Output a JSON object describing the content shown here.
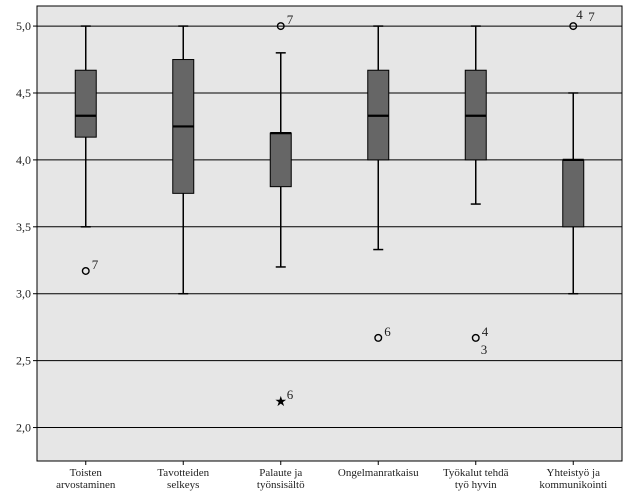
{
  "chart_data": {
    "type": "boxplot",
    "ylim": [
      1.75,
      5.15
    ],
    "y_ticks": [
      "2,0",
      "2,5",
      "3,0",
      "3,5",
      "4,0",
      "4,5",
      "5,0"
    ],
    "y_tick_values": [
      2.0,
      2.5,
      3.0,
      3.5,
      4.0,
      4.5,
      5.0
    ],
    "grid": true,
    "colors": {
      "plot_bg": "#e6e6e6",
      "box": "#666666",
      "line": "#000000"
    },
    "categories": [
      {
        "label_lines": [
          "Toisten",
          "arvostaminen"
        ],
        "whisker_low": 3.5,
        "q1": 4.17,
        "median": 4.33,
        "q3": 4.67,
        "whisker_high": 5.0,
        "outliers": [
          {
            "value": 3.17,
            "marker": "circle",
            "labels": [
              "7"
            ]
          }
        ]
      },
      {
        "label_lines": [
          "Tavotteiden",
          "selkeys"
        ],
        "whisker_low": 3.0,
        "q1": 3.75,
        "median": 4.25,
        "q3": 4.75,
        "whisker_high": 5.0,
        "outliers": []
      },
      {
        "label_lines": [
          "Palaute ja",
          "työnsisältö"
        ],
        "whisker_low": 3.2,
        "q1": 3.8,
        "median": 4.2,
        "q3": 4.2,
        "whisker_high": 4.8,
        "outliers": [
          {
            "value": 5.0,
            "marker": "circle",
            "labels": [
              "7"
            ]
          },
          {
            "value": 2.2,
            "marker": "star",
            "labels": [
              "6"
            ]
          }
        ]
      },
      {
        "label_lines": [
          "Ongelmanratkaisu"
        ],
        "whisker_low": 3.33,
        "q1": 4.0,
        "median": 4.33,
        "q3": 4.67,
        "whisker_high": 5.0,
        "outliers": [
          {
            "value": 2.67,
            "marker": "circle",
            "labels": [
              "6"
            ]
          }
        ]
      },
      {
        "label_lines": [
          "Työkalut tehdä",
          "työ hyvin"
        ],
        "whisker_low": 3.67,
        "q1": 4.0,
        "median": 4.33,
        "q3": 4.67,
        "whisker_high": 5.0,
        "outliers": [
          {
            "value": 2.67,
            "marker": "circle",
            "labels": [
              "4",
              "3"
            ]
          }
        ]
      },
      {
        "label_lines": [
          "Yhteistyö ja",
          "kommunikointi"
        ],
        "whisker_low": 3.0,
        "q1": 3.5,
        "median": 4.0,
        "q3": 4.0,
        "whisker_high": 4.5,
        "outliers": [
          {
            "value": 5.0,
            "marker": "circle",
            "labels": [
              "4",
              "7"
            ]
          }
        ]
      }
    ]
  }
}
